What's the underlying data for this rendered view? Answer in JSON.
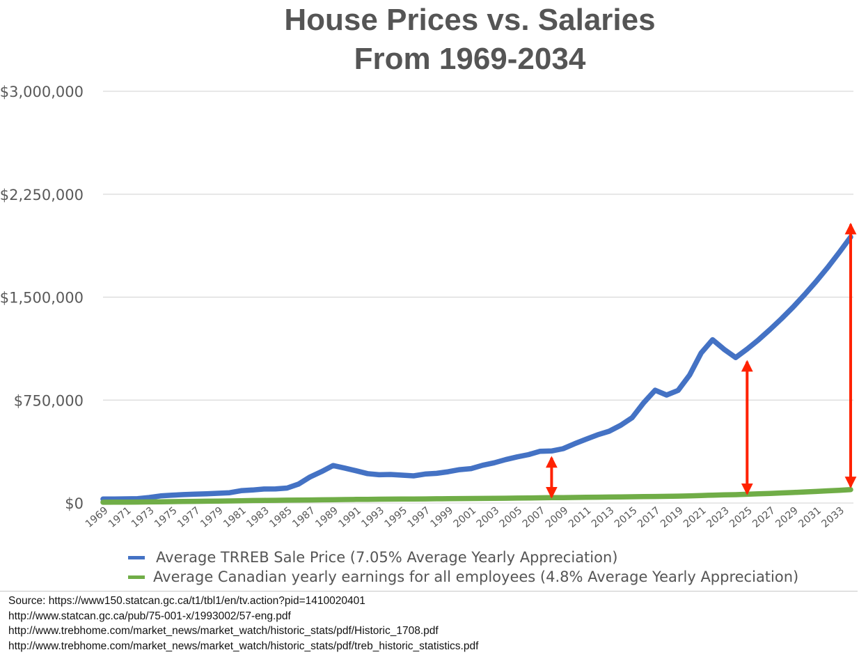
{
  "chart_data": {
    "type": "line",
    "title": "House Prices vs. Salaries",
    "subtitle": "From 1969-2034",
    "xlabel": "",
    "ylabel": "",
    "xlim": [
      1969,
      2034
    ],
    "ylim": [
      0,
      3000000
    ],
    "y_ticks": [
      0,
      750000,
      1500000,
      2250000,
      3000000
    ],
    "y_tick_labels": [
      "$0",
      "$750,000",
      "$1,500,000",
      "$2,250,000",
      "$3,000,000"
    ],
    "x_tick_labels": [
      "1969",
      "1971",
      "1973",
      "1975",
      "1977",
      "1979",
      "1981",
      "1983",
      "1985",
      "1987",
      "1989",
      "1991",
      "1993",
      "1995",
      "1997",
      "1999",
      "2001",
      "2003",
      "2005",
      "2007",
      "2009",
      "2011",
      "2013",
      "2015",
      "2017",
      "2019",
      "2021",
      "2023",
      "2025",
      "2027",
      "2029",
      "2031",
      "2033"
    ],
    "grid": true,
    "legend_position": "bottom",
    "x": [
      1969,
      1970,
      1971,
      1972,
      1973,
      1974,
      1975,
      1976,
      1977,
      1978,
      1979,
      1980,
      1981,
      1982,
      1983,
      1984,
      1985,
      1986,
      1987,
      1988,
      1989,
      1990,
      1991,
      1992,
      1993,
      1994,
      1995,
      1996,
      1997,
      1998,
      1999,
      2000,
      2001,
      2002,
      2003,
      2004,
      2005,
      2006,
      2007,
      2008,
      2009,
      2010,
      2011,
      2012,
      2013,
      2014,
      2015,
      2016,
      2017,
      2018,
      2019,
      2020,
      2021,
      2022,
      2023,
      2024,
      2025,
      2026,
      2027,
      2028,
      2029,
      2030,
      2031,
      2032,
      2033,
      2034
    ],
    "series": [
      {
        "name": "Average TRREB Sale Price (7.05% Average Yearly Appreciation)",
        "color": "#4472c4",
        "values": [
          29000,
          29500,
          30500,
          32000,
          40000,
          52000,
          57000,
          61500,
          64500,
          67500,
          71000,
          75000,
          90000,
          95000,
          102000,
          103000,
          109000,
          138000,
          190000,
          229000,
          273000,
          255000,
          235000,
          214000,
          206000,
          208000,
          203000,
          198000,
          211000,
          216000,
          228000,
          243000,
          251000,
          275000,
          293000,
          316000,
          336000,
          353000,
          377000,
          379000,
          396000,
          432000,
          465000,
          497000,
          523000,
          566000,
          622000,
          730000,
          822000,
          787000,
          821000,
          933000,
          1093000,
          1190000,
          1120000,
          1060000,
          1122000,
          1190000,
          1265000,
          1344000,
          1428000,
          1519000,
          1614000,
          1716000,
          1825000,
          1938000
        ]
      },
      {
        "name": "Average Canadian yearly earnings for all employees (4.8% Average Yearly Appreciation)",
        "color": "#70ad47",
        "values": [
          5500,
          6100,
          6700,
          7300,
          8000,
          9000,
          10200,
          11300,
          12300,
          13200,
          14200,
          15400,
          16900,
          18200,
          19100,
          19900,
          20700,
          21400,
          22200,
          23100,
          24100,
          25200,
          26200,
          27100,
          27700,
          28200,
          28800,
          29500,
          30200,
          30900,
          31700,
          32400,
          33000,
          33700,
          34300,
          34900,
          35800,
          36800,
          38000,
          39000,
          39500,
          40600,
          41700,
          42800,
          43800,
          44800,
          45800,
          46600,
          47600,
          48800,
          50100,
          52500,
          54800,
          57300,
          59500,
          60900,
          63800,
          66900,
          70100,
          73400,
          76900,
          80600,
          84500,
          88600,
          92800,
          97300
        ]
      }
    ],
    "annotations": [
      {
        "type": "double-arrow",
        "color": "#ff2200",
        "x": 2008,
        "y_from": 45000,
        "y_to": 330000
      },
      {
        "type": "double-arrow",
        "color": "#ff2200",
        "x": 2025,
        "y_from": 70000,
        "y_to": 1030000
      },
      {
        "type": "double-arrow",
        "color": "#ff2200",
        "x": 2035,
        "y_from": 120000,
        "y_to": 2030000
      }
    ]
  },
  "sources": [
    "Source: https://www150.statcan.gc.ca/t1/tbl1/en/tv.action?pid=1410020401",
    "http://www.statcan.gc.ca/pub/75-001-x/1993002/57-eng.pdf",
    "http://www.trebhome.com/market_news/market_watch/historic_stats/pdf/Historic_1708.pdf",
    "http://www.trebhome.com/market_news/market_watch/historic_stats/pdf/treb_historic_statistics.pdf"
  ]
}
